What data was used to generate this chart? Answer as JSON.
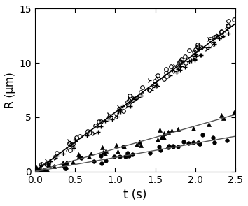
{
  "title": "",
  "xlabel": "t (s)",
  "ylabel": "R (μm)",
  "xlim": [
    0,
    2.5
  ],
  "ylim": [
    0,
    15
  ],
  "xticks": [
    0.0,
    0.5,
    1.0,
    1.5,
    2.0,
    2.5
  ],
  "yticks": [
    0,
    5,
    10,
    15
  ],
  "fit_color_gas": "#000000",
  "fit_color_liquid": "#555555",
  "open_color": "#000000",
  "filled_color": "#000000",
  "figsize": [
    3.54,
    2.95
  ],
  "dpi": 100,
  "seed": 12345,
  "gas_series": [
    {
      "slope": 5.55,
      "n_points": 55,
      "noise": 0.25,
      "marker": "o",
      "t_start": 0.01,
      "t_end": 2.5
    },
    {
      "slope": 5.4,
      "n_points": 50,
      "noise": 0.28,
      "marker": "4",
      "t_start": 0.01,
      "t_end": 2.5
    },
    {
      "slope": 5.3,
      "n_points": 45,
      "noise": 0.22,
      "marker": "+",
      "t_start": 0.01,
      "t_end": 2.5
    }
  ],
  "liquid_series": [
    {
      "slope": 2.1,
      "n_points": 40,
      "noise": 0.22,
      "marker": "^",
      "t_start": 0.01,
      "t_end": 2.5
    },
    {
      "slope": 1.3,
      "n_points": 38,
      "noise": 0.22,
      "marker": "o",
      "t_start": 0.01,
      "t_end": 2.5
    }
  ],
  "gas_fit_slope": 5.45,
  "liquid_fit_slopes": [
    2.1,
    1.3
  ]
}
